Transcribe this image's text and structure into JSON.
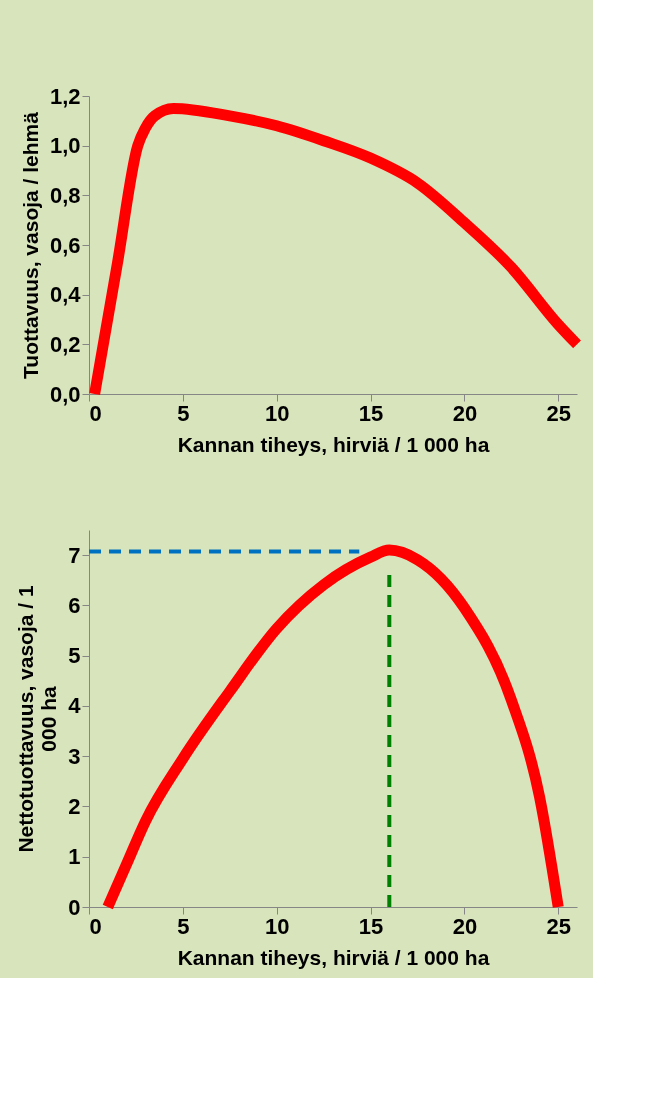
{
  "chart_data": [
    {
      "type": "line",
      "ylabel": "Tuottavuus, vasoja / lehmä",
      "xlabel": "Kannan tiheys, hirviä / 1 000 ha",
      "xlim": [
        0,
        26
      ],
      "xticks": [
        0,
        5,
        10,
        15,
        20,
        25
      ],
      "ylim": [
        0,
        1.2
      ],
      "yticks": [
        {
          "value": 0,
          "label": "0,0"
        },
        {
          "value": 0.2,
          "label": "0,2"
        },
        {
          "value": 0.4,
          "label": "0,4"
        },
        {
          "value": 0.6,
          "label": "0,6"
        },
        {
          "value": 0.8,
          "label": "0,8"
        },
        {
          "value": 1.0,
          "label": "1,0"
        },
        {
          "value": 1.2,
          "label": "1,2"
        }
      ],
      "grid": false,
      "marker": "none",
      "line_style": "solid",
      "series": [
        {
          "color": "#ff0000",
          "x": [
            0.3,
            1.5,
            2.6,
            3.0,
            3.5,
            4.5,
            7.5,
            10,
            12.5,
            15,
            17.5,
            20,
            22.5,
            25,
            26
          ],
          "values": [
            0,
            0.52,
            1.0,
            1.07,
            1.12,
            1.15,
            1.12,
            1.08,
            1.02,
            0.95,
            0.85,
            0.69,
            0.51,
            0.28,
            0.2
          ]
        }
      ]
    },
    {
      "type": "line",
      "ylabel": "Nettotuottavuus, vasoja / 1 000 ha",
      "xlabel": "Kannan tiheys, hirviä / 1 000 ha",
      "xlim": [
        0,
        26
      ],
      "xticks": [
        0,
        5,
        10,
        15,
        20,
        25
      ],
      "ylim": [
        0,
        7.5
      ],
      "yticks": [
        0,
        1,
        2,
        3,
        4,
        5,
        6,
        7
      ],
      "grid": false,
      "marker": "none",
      "series": [
        {
          "color": "#ff0000",
          "line_style": "solid",
          "x": [
            1.0,
            2.0,
            3.0,
            5.0,
            7.5,
            10,
            12.5,
            15,
            16,
            17.5,
            20,
            22.5,
            24,
            25
          ],
          "values": [
            0,
            0.85,
            1.7,
            2.95,
            4.29,
            5.54,
            6.41,
            6.96,
            7.1,
            6.91,
            5.95,
            4.12,
            2.2,
            0
          ]
        },
        {
          "color": "#0070c0",
          "line_style": "dashed",
          "x": [
            0,
            14.4
          ],
          "values": [
            7.07,
            7.07
          ]
        },
        {
          "color": "#008000",
          "line_style": "dashed",
          "x": [
            16,
            16
          ],
          "values": [
            0,
            6.64
          ]
        }
      ]
    }
  ]
}
